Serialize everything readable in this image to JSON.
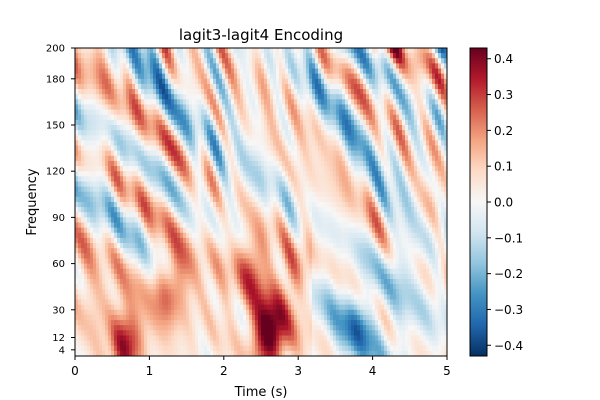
{
  "chart_data": {
    "type": "heatmap",
    "title": "lagit3-lagit4 Encoding",
    "xlabel": "Time (s)",
    "ylabel": "Frequency",
    "xlim": [
      0,
      5
    ],
    "ylim": [
      0,
      200
    ],
    "x_ticks": [
      0,
      1,
      2,
      3,
      4,
      5
    ],
    "y_ticks": [
      4,
      12,
      30,
      60,
      90,
      120,
      150,
      180,
      200
    ],
    "colorbar": {
      "colormap": "RdBu_r",
      "range": [
        -0.43,
        0.43
      ],
      "ticks": [
        0.4,
        0.3,
        0.2,
        0.1,
        0.0,
        -0.1,
        -0.2,
        -0.3,
        -0.4
      ],
      "tick_labels": [
        "0.4",
        "0.3",
        "0.2",
        "0.1",
        "0.0",
        "−0.1",
        "−0.2",
        "−0.3",
        "−0.4"
      ]
    },
    "features": [
      {
        "time": 2.6,
        "freq": 12,
        "value": 0.42
      },
      {
        "time": 0.7,
        "freq": 8,
        "value": 0.28
      },
      {
        "time": 1.3,
        "freq": 45,
        "value": 0.22
      },
      {
        "time": 2.45,
        "freq": 65,
        "value": 0.2
      },
      {
        "time": 2.95,
        "freq": 55,
        "value": 0.18
      },
      {
        "time": 4.7,
        "freq": 90,
        "value": 0.15
      },
      {
        "time": 3.8,
        "freq": 20,
        "value": -0.15
      },
      {
        "time": 4.5,
        "freq": 70,
        "value": -0.14
      }
    ]
  }
}
